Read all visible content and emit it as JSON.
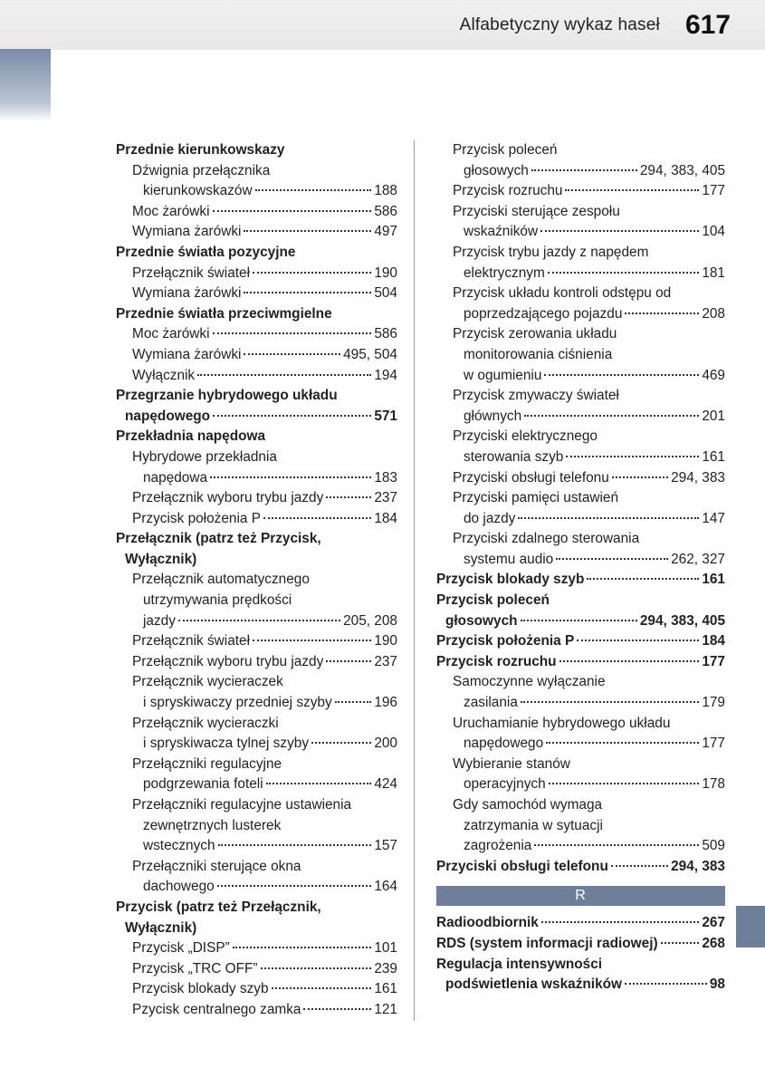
{
  "header": {
    "title": "Alfabetyczny wykaz haseł",
    "page_number": "617"
  },
  "colors": {
    "header_bg_top": "#f0f0f0",
    "header_bg_bottom": "#e8e8e8",
    "sidebar_gradient_top": "#7a8ba6",
    "sidebar_gradient_bottom": "#ffffff",
    "tab_bg": "#6e8099",
    "text": "#222222",
    "divider": "#999999"
  },
  "left_column": [
    {
      "type": "main",
      "bold": true,
      "label": "Przednie kierunkowskazy"
    },
    {
      "type": "sub",
      "label": "Dźwignia przełącznika"
    },
    {
      "type": "sub2",
      "label": "kierunkowskazów",
      "pages": "188"
    },
    {
      "type": "sub",
      "label": "Moc żarówki",
      "pages": "586"
    },
    {
      "type": "sub",
      "label": "Wymiana żarówki",
      "pages": "497"
    },
    {
      "type": "main",
      "bold": true,
      "label": "Przednie światła pozycyjne"
    },
    {
      "type": "sub",
      "label": "Przełącznik świateł",
      "pages": "190"
    },
    {
      "type": "sub",
      "label": "Wymiana żarówki",
      "pages": "504"
    },
    {
      "type": "main",
      "bold": true,
      "label": "Przednie światła przeciwmgielne"
    },
    {
      "type": "sub",
      "label": "Moc żarówki",
      "pages": "586"
    },
    {
      "type": "sub",
      "label": "Wymiana żarówki",
      "pages": "495, 504"
    },
    {
      "type": "sub",
      "label": "Wyłącznik",
      "pages": "194"
    },
    {
      "type": "main",
      "bold": true,
      "label": "Przegrzanie hybrydowego układu"
    },
    {
      "type": "cont-main",
      "bold": true,
      "label": "napędowego",
      "pages": "571"
    },
    {
      "type": "main",
      "bold": true,
      "label": "Przekładnia napędowa"
    },
    {
      "type": "sub",
      "label": "Hybrydowe przekładnia"
    },
    {
      "type": "sub2",
      "label": "napędowa",
      "pages": "183"
    },
    {
      "type": "sub",
      "label": "Przełącznik wyboru trybu jazdy",
      "pages": "237"
    },
    {
      "type": "sub",
      "label": "Przycisk położenia P",
      "pages": "184"
    },
    {
      "type": "main",
      "bold": true,
      "label": "Przełącznik (patrz też Przycisk,"
    },
    {
      "type": "cont-main",
      "bold": true,
      "label": "Wyłącznik)"
    },
    {
      "type": "sub",
      "label": "Przełącznik automatycznego"
    },
    {
      "type": "sub2",
      "label": "utrzymywania prędkości"
    },
    {
      "type": "sub2",
      "label": "jazdy",
      "pages": "205, 208"
    },
    {
      "type": "sub",
      "label": "Przełącznik świateł",
      "pages": "190"
    },
    {
      "type": "sub",
      "label": "Przełącznik wyboru trybu jazdy",
      "pages": "237"
    },
    {
      "type": "sub",
      "label": "Przełącznik wycieraczek"
    },
    {
      "type": "sub2",
      "label": "i spryskiwaczy przedniej szyby",
      "pages": "196"
    },
    {
      "type": "sub",
      "label": "Przełącznik wycieraczki"
    },
    {
      "type": "sub2",
      "label": "i spryskiwacza tylnej szyby",
      "pages": "200"
    },
    {
      "type": "sub",
      "label": "Przełączniki regulacyjne"
    },
    {
      "type": "sub2",
      "label": "podgrzewania foteli",
      "pages": "424"
    },
    {
      "type": "sub",
      "label": "Przełączniki regulacyjne ustawienia"
    },
    {
      "type": "sub2",
      "label": "zewnętrznych lusterek"
    },
    {
      "type": "sub2",
      "label": "wstecznych",
      "pages": "157"
    },
    {
      "type": "sub",
      "label": "Przełączniki sterujące okna"
    },
    {
      "type": "sub2",
      "label": "dachowego",
      "pages": "164"
    },
    {
      "type": "main",
      "bold": true,
      "label": "Przycisk (patrz też Przełącznik,"
    },
    {
      "type": "cont-main",
      "bold": true,
      "label": "Wyłącznik)"
    },
    {
      "type": "sub",
      "label": "Przycisk „DISP”",
      "pages": "101"
    },
    {
      "type": "sub",
      "label": "Przycisk „TRC OFF”",
      "pages": "239"
    },
    {
      "type": "sub",
      "label": "Przycisk blokady szyb",
      "pages": "161"
    },
    {
      "type": "sub",
      "label": "Pzycisk centralnego zamka",
      "pages": "121"
    }
  ],
  "right_column": [
    {
      "type": "sub",
      "label": "Przycisk poleceń"
    },
    {
      "type": "sub2",
      "label": "głosowych",
      "pages": "294, 383, 405"
    },
    {
      "type": "sub",
      "label": "Przycisk rozruchu",
      "pages": "177"
    },
    {
      "type": "sub",
      "label": "Przyciski sterujące zespołu"
    },
    {
      "type": "sub2",
      "label": "wskaźników",
      "pages": "104"
    },
    {
      "type": "sub",
      "label": "Przycisk trybu jazdy z napędem"
    },
    {
      "type": "sub2",
      "label": "elektrycznym",
      "pages": "181"
    },
    {
      "type": "sub",
      "label": "Przycisk układu kontroli odstępu od"
    },
    {
      "type": "sub2",
      "label": "poprzedzającego pojazdu",
      "pages": "208"
    },
    {
      "type": "sub",
      "label": "Przycisk zerowania układu"
    },
    {
      "type": "sub2",
      "label": "monitorowania ciśnienia"
    },
    {
      "type": "sub2",
      "label": "w ogumieniu",
      "pages": "469"
    },
    {
      "type": "sub",
      "label": "Przycisk zmywaczy świateł"
    },
    {
      "type": "sub2",
      "label": "głównych",
      "pages": "201"
    },
    {
      "type": "sub",
      "label": "Przyciski elektrycznego"
    },
    {
      "type": "sub2",
      "label": "sterowania szyb",
      "pages": "161"
    },
    {
      "type": "sub",
      "label": "Przyciski obsługi telefonu",
      "pages": "294, 383"
    },
    {
      "type": "sub",
      "label": "Przyciski pamięci ustawień"
    },
    {
      "type": "sub2",
      "label": "do jazdy",
      "pages": "147"
    },
    {
      "type": "sub",
      "label": "Przyciski zdalnego sterowania"
    },
    {
      "type": "sub2",
      "label": "systemu audio",
      "pages": "262, 327"
    },
    {
      "type": "main",
      "bold": true,
      "label": "Przycisk blokady szyb",
      "pages": "161"
    },
    {
      "type": "main",
      "bold": true,
      "label": "Przycisk poleceń"
    },
    {
      "type": "cont-main",
      "bold": true,
      "label": "głosowych",
      "pages": "294, 383, 405"
    },
    {
      "type": "main",
      "bold": true,
      "label": "Przycisk położenia P",
      "pages": "184"
    },
    {
      "type": "main",
      "bold": true,
      "label": "Przycisk rozruchu",
      "pages": "177"
    },
    {
      "type": "sub",
      "label": "Samoczynne wyłączanie"
    },
    {
      "type": "sub2",
      "label": "zasilania",
      "pages": "179"
    },
    {
      "type": "sub",
      "label": "Uruchamianie hybrydowego układu"
    },
    {
      "type": "sub2",
      "label": "napędowego",
      "pages": "177"
    },
    {
      "type": "sub",
      "label": "Wybieranie stanów"
    },
    {
      "type": "sub2",
      "label": "operacyjnych",
      "pages": "178"
    },
    {
      "type": "sub",
      "label": "Gdy samochód wymaga"
    },
    {
      "type": "sub2",
      "label": "zatrzymania w sytuacji"
    },
    {
      "type": "sub2",
      "label": "zagrożenia",
      "pages": "509"
    },
    {
      "type": "main",
      "bold": true,
      "label": "Przyciski obsługi telefonu",
      "pages": "294, 383"
    },
    {
      "type": "section",
      "label": "R"
    },
    {
      "type": "main",
      "bold": true,
      "label": "Radioodbiornik",
      "pages": "267"
    },
    {
      "type": "main",
      "bold": true,
      "label": "RDS (system informacji radiowej)",
      "pages": "268"
    },
    {
      "type": "main",
      "bold": true,
      "label": "Regulacja intensywności"
    },
    {
      "type": "cont-main",
      "bold": true,
      "label": "podświetlenia wskaźników",
      "pages": "98"
    }
  ]
}
